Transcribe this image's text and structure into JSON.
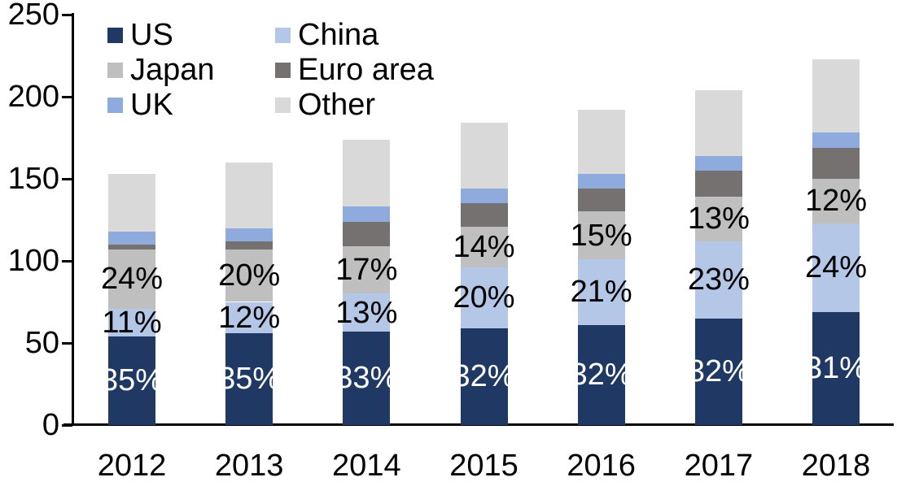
{
  "chart_data": {
    "type": "bar",
    "stacked": true,
    "title": "",
    "grid": "off",
    "legend_position": "top-left",
    "categories": [
      "2012",
      "2013",
      "2014",
      "2015",
      "2016",
      "2017",
      "2018"
    ],
    "series": [
      {
        "name": "US",
        "color": "#1F3864",
        "label_color": "#FFFFFF",
        "values": [
          54,
          56,
          57,
          59,
          61,
          65,
          69
        ],
        "labels": [
          "35%",
          "35%",
          "33%",
          "32%",
          "32%",
          "32%",
          "31%"
        ]
      },
      {
        "name": "China",
        "color": "#B4C7E7",
        "label_color": "#000000",
        "values": [
          17,
          19,
          23,
          37,
          40,
          47,
          54
        ],
        "labels": [
          "11%",
          "12%",
          "13%",
          "20%",
          "21%",
          "23%",
          "24%"
        ]
      },
      {
        "name": "Japan",
        "color": "#BFBFBF",
        "label_color": "#000000",
        "values": [
          36,
          32,
          29,
          25,
          29,
          27,
          27
        ],
        "labels": [
          "24%",
          "20%",
          "17%",
          "14%",
          "15%",
          "13%",
          "12%"
        ]
      },
      {
        "name": "Euro area",
        "color": "#767171",
        "label_color": "#000000",
        "values": [
          3,
          5,
          15,
          14,
          14,
          16,
          19
        ],
        "labels": null
      },
      {
        "name": "UK",
        "color": "#8FAADC",
        "label_color": "#000000",
        "values": [
          8,
          8,
          9,
          9,
          9,
          9,
          9
        ],
        "labels": null
      },
      {
        "name": "Other",
        "color": "#D9D9D9",
        "label_color": "#000000",
        "values": [
          35,
          40,
          41,
          40,
          39,
          40,
          45
        ],
        "labels": null
      }
    ],
    "totals": [
      153,
      160,
      174,
      184,
      192,
      204,
      223
    ],
    "y_axis": {
      "min": 0,
      "max": 250,
      "step": 50,
      "ticks": [
        {
          "value": 0,
          "label": "0"
        },
        {
          "value": 50,
          "label": "50"
        },
        {
          "value": 100,
          "label": "100"
        },
        {
          "value": 150,
          "label": "150"
        },
        {
          "value": 200,
          "label": "200"
        },
        {
          "value": 250,
          "label": "250"
        }
      ]
    },
    "legend": {
      "rows": [
        [
          "US",
          "China"
        ],
        [
          "Japan",
          "Euro area"
        ],
        [
          "UK",
          "Other"
        ]
      ]
    }
  }
}
